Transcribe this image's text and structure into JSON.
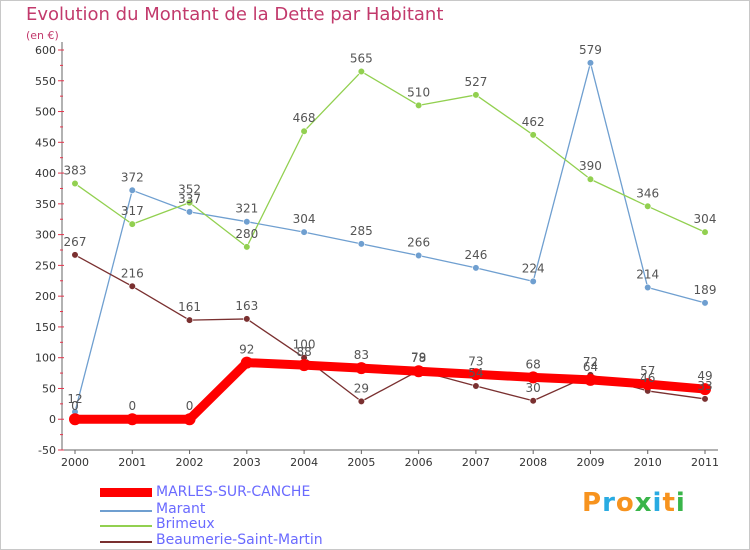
{
  "chart_data": {
    "type": "line",
    "title": "Evolution du Montant de la Dette par Habitant",
    "subtitle": "(en €)",
    "xlabel": "",
    "ylabel": "",
    "x": [
      "2000",
      "2001",
      "2002",
      "2003",
      "2004",
      "2005",
      "2006",
      "2007",
      "2008",
      "2009",
      "2010",
      "2011"
    ],
    "ylim": [
      -50,
      600
    ],
    "yticks": [
      -50,
      0,
      50,
      100,
      150,
      200,
      250,
      300,
      350,
      400,
      450,
      500,
      550,
      600
    ],
    "grid": false,
    "legend_position": "bottom-left",
    "series": [
      {
        "name": "MARLES-SUR-CANCHE",
        "color": "#ff0000",
        "values": [
          0,
          0,
          0,
          92,
          88,
          83,
          78,
          73,
          68,
          64,
          57,
          49
        ],
        "labels": [
          "0",
          "0",
          "0",
          "92",
          "88",
          "83",
          "78",
          "73",
          "68",
          "64",
          "57",
          "49"
        ]
      },
      {
        "name": "Marant",
        "color": "#6f9fd0",
        "values": [
          12,
          372,
          337,
          321,
          304,
          285,
          266,
          246,
          224,
          579,
          214,
          189
        ],
        "labels": [
          "12",
          "372",
          "337",
          "321",
          "304",
          "285",
          "266",
          "246",
          "224",
          "579",
          "214",
          "189"
        ]
      },
      {
        "name": "Brimeux",
        "color": "#92d050",
        "values": [
          383,
          317,
          352,
          280,
          468,
          565,
          510,
          527,
          462,
          390,
          346,
          304
        ],
        "labels": [
          "383",
          "317",
          "352",
          "280",
          "468",
          "565",
          "510",
          "527",
          "462",
          "390",
          "346",
          "304"
        ]
      },
      {
        "name": "Beaumerie-Saint-Martin",
        "color": "#7a3030",
        "values": [
          267,
          216,
          161,
          163,
          100,
          29,
          79,
          54,
          30,
          72,
          46,
          33
        ],
        "labels": [
          "267",
          "216",
          "161",
          "163",
          "100",
          "29",
          "79",
          "54",
          "30",
          "72",
          "46",
          "33"
        ]
      }
    ]
  },
  "legend": {
    "items": [
      {
        "label": "MARLES-SUR-CANCHE",
        "color": "#ff0000"
      },
      {
        "label": "Marant",
        "color": "#6f9fd0"
      },
      {
        "label": "Brimeux",
        "color": "#92d050"
      },
      {
        "label": "Beaumerie-Saint-Martin",
        "color": "#7a3030"
      }
    ]
  },
  "logo": {
    "text": "Proxiti",
    "colors": [
      "#f7931e",
      "#29abe2",
      "#f7931e",
      "#39b54a",
      "#29abe2",
      "#f7931e",
      "#39b54a"
    ]
  },
  "colors": {
    "title": "#c23a6c",
    "axis": "#666666",
    "tick_red": "#e6334c",
    "label": "#555555",
    "legend_text": "#6a6aff"
  }
}
